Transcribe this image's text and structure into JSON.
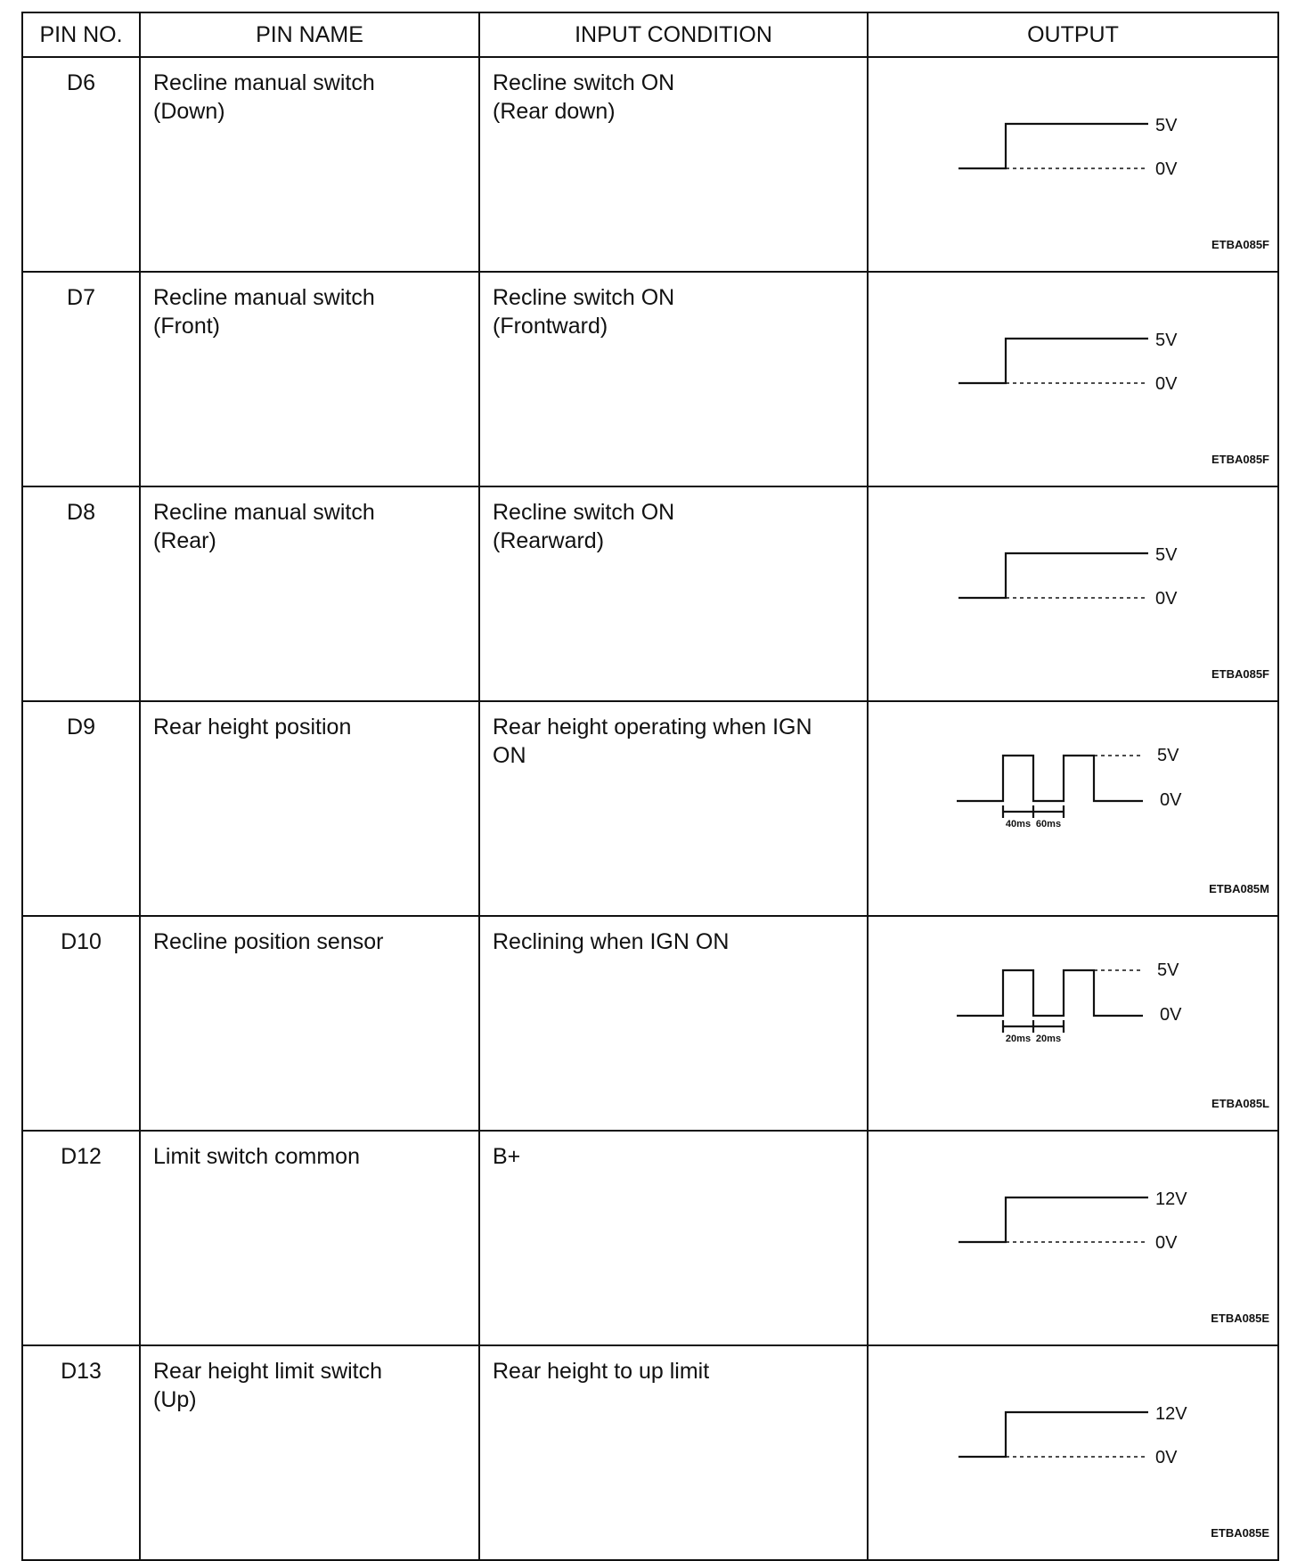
{
  "headers": {
    "pin_no": "PIN NO.",
    "pin_name": "PIN NAME",
    "input_condition": "INPUT CONDITION",
    "output": "OUTPUT"
  },
  "rows": [
    {
      "pin": "D6",
      "name": [
        "Recline manual switch",
        "(Down)"
      ],
      "condition": [
        "Recline switch ON",
        "(Rear down)"
      ],
      "output": {
        "type": "step",
        "high": "5V",
        "low": "0V",
        "code": "ETBA085F"
      }
    },
    {
      "pin": "D7",
      "name": [
        "Recline manual switch",
        "(Front)"
      ],
      "condition": [
        "Recline switch ON",
        "(Frontward)"
      ],
      "output": {
        "type": "step",
        "high": "5V",
        "low": "0V",
        "code": "ETBA085F"
      }
    },
    {
      "pin": "D8",
      "name": [
        "Recline manual switch",
        "(Rear)"
      ],
      "condition": [
        "Recline switch ON",
        "(Rearward)"
      ],
      "output": {
        "type": "step",
        "high": "5V",
        "low": "0V",
        "code": "ETBA085F"
      }
    },
    {
      "pin": "D9",
      "name": [
        "Rear height position",
        ""
      ],
      "condition": [
        "Rear height operating when IGN",
        "ON"
      ],
      "output": {
        "type": "pulse",
        "high": "5V",
        "low": "0V",
        "intervals": [
          "40ms",
          "60ms"
        ],
        "code": "ETBA085M"
      }
    },
    {
      "pin": "D10",
      "name": [
        "Recline position sensor",
        ""
      ],
      "condition": [
        "Reclining when IGN ON",
        ""
      ],
      "output": {
        "type": "pulse",
        "high": "5V",
        "low": "0V",
        "intervals": [
          "20ms",
          "20ms"
        ],
        "code": "ETBA085L"
      }
    },
    {
      "pin": "D12",
      "name": [
        "Limit switch common",
        ""
      ],
      "condition": [
        "B+",
        ""
      ],
      "output": {
        "type": "step",
        "high": "12V",
        "low": "0V",
        "code": "ETBA085E"
      }
    },
    {
      "pin": "D13",
      "name": [
        "Rear height limit switch",
        "(Up)"
      ],
      "condition": [
        "Rear height to up limit",
        ""
      ],
      "output": {
        "type": "step",
        "high": "12V",
        "low": "0V",
        "code": "ETBA085E"
      }
    }
  ]
}
